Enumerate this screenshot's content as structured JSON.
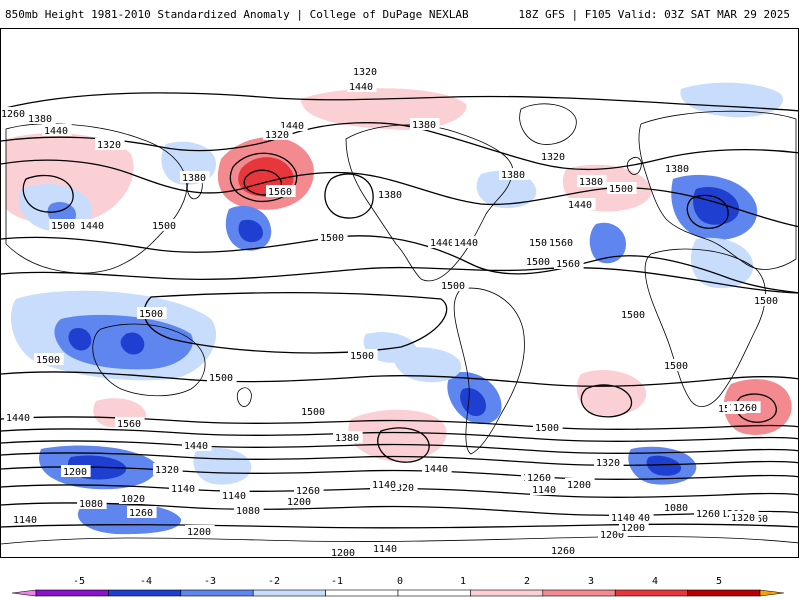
{
  "header": {
    "title": "850mb Height 1981-2010 Standardized Anomaly | College of DuPage NEXLAB",
    "run_info": "18Z GFS | F105 Valid: 03Z SAT MAR 29 2025"
  },
  "map": {
    "contour_labels": [
      "1320",
      "1440",
      "1260",
      "1380",
      "1440",
      "1320",
      "1380",
      "1440",
      "1320",
      "1560",
      "1500",
      "1440",
      "1500",
      "1500",
      "1380",
      "1380",
      "1440",
      "1500",
      "1560",
      "1500",
      "1440",
      "1560",
      "1380",
      "1500",
      "1440",
      "1380",
      "1320",
      "1500",
      "1500",
      "1500",
      "1500",
      "1500",
      "1500",
      "1500",
      "1500",
      "1500",
      "1500",
      "1560",
      "1440",
      "1380",
      "1320",
      "1260",
      "1200",
      "1140",
      "1380",
      "1500",
      "1440",
      "1320",
      "1260",
      "1200",
      "1140",
      "1080",
      "1020",
      "1140",
      "1200",
      "1140",
      "1080",
      "1260",
      "1200",
      "1260",
      "1140",
      "1200",
      "1260",
      "1380",
      "1440",
      "1320",
      "1260",
      "1200",
      "1140",
      "1080",
      "1140",
      "1200",
      "1260",
      "1320",
      "1140",
      "1260",
      "1200"
    ],
    "colors": {
      "neg5": "#f080f0",
      "neg4": "#8a12c8",
      "neg3": "#1e3fcf",
      "neg2": "#5e86ee",
      "neg1": "#c8dcfb",
      "pos1": "#fbd0d4",
      "pos2": "#f38a8f",
      "pos3": "#e8363d",
      "pos4": "#b80000",
      "pos5": "#f6a000"
    }
  },
  "colorbar": {
    "ticks": [
      "-5",
      "-4",
      "-3",
      "-2",
      "-1",
      "0",
      "1",
      "2",
      "3",
      "4",
      "5"
    ]
  }
}
